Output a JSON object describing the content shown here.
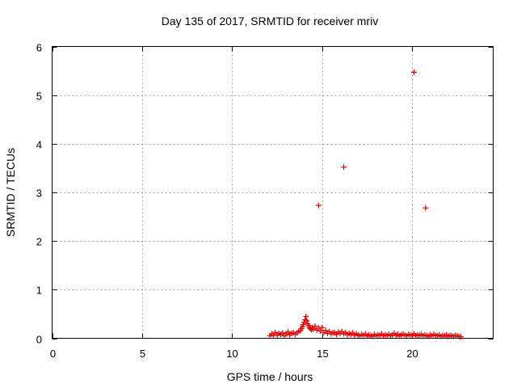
{
  "chart_data": {
    "type": "scatter",
    "title": "Day 135 of 2017, SRMTID for receiver mriv",
    "xlabel": "GPS time / hours",
    "ylabel": "SRMTID / TECUs",
    "xlim": [
      0,
      24.5
    ],
    "ylim": [
      0,
      6
    ],
    "xticks": [
      0,
      5,
      10,
      15,
      20
    ],
    "yticks": [
      0,
      1,
      2,
      3,
      4,
      5,
      6
    ],
    "grid": true,
    "marker": "+",
    "color": "#e00000",
    "series": [
      {
        "x": [
          12.1,
          12.2,
          12.3,
          12.4,
          12.5,
          12.6,
          12.7,
          12.8,
          12.9,
          13.0,
          13.1,
          13.2,
          13.3,
          13.4,
          13.5,
          13.6,
          13.7,
          13.8,
          13.85,
          13.9,
          13.95,
          14.0,
          14.05,
          14.1,
          14.15,
          14.2,
          14.25,
          14.3,
          14.35,
          14.4,
          14.45,
          14.5,
          14.6,
          14.7,
          14.8,
          14.9,
          15.0,
          15.1,
          15.2,
          15.3,
          15.4,
          15.5,
          15.6,
          15.7,
          15.8,
          15.9,
          16.0,
          16.1,
          16.2,
          16.3,
          16.4,
          16.5,
          16.6,
          16.7,
          16.8,
          16.9,
          17.0,
          17.1,
          17.2,
          17.3,
          17.4,
          17.5,
          17.6,
          17.7,
          17.8,
          17.9,
          18.0,
          18.1,
          18.2,
          18.3,
          18.4,
          18.5,
          18.6,
          18.7,
          18.8,
          18.9,
          19.0,
          19.1,
          19.2,
          19.3,
          19.4,
          19.5,
          19.6,
          19.7,
          19.8,
          19.9,
          20.0,
          20.1,
          20.2,
          20.3,
          20.4,
          20.5,
          20.6,
          20.7,
          20.8,
          20.9,
          21.0,
          21.1,
          21.2,
          21.3,
          21.4,
          21.5,
          21.6,
          21.7,
          21.8,
          21.9,
          22.0,
          22.1,
          22.2,
          22.3,
          22.4,
          22.5,
          22.6,
          22.7,
          14.8,
          16.2,
          20.1,
          20.75
        ],
        "y": [
          0.05,
          0.09,
          0.07,
          0.12,
          0.06,
          0.1,
          0.08,
          0.11,
          0.05,
          0.09,
          0.13,
          0.07,
          0.1,
          0.12,
          0.08,
          0.11,
          0.14,
          0.16,
          0.2,
          0.24,
          0.28,
          0.33,
          0.38,
          0.45,
          0.36,
          0.3,
          0.26,
          0.22,
          0.2,
          0.18,
          0.22,
          0.19,
          0.25,
          0.17,
          0.21,
          0.15,
          0.22,
          0.12,
          0.16,
          0.1,
          0.14,
          0.09,
          0.12,
          0.11,
          0.08,
          0.13,
          0.1,
          0.14,
          0.09,
          0.12,
          0.07,
          0.1,
          0.08,
          0.11,
          0.06,
          0.09,
          0.07,
          0.05,
          0.08,
          0.06,
          0.09,
          0.05,
          0.07,
          0.06,
          0.04,
          0.08,
          0.05,
          0.07,
          0.06,
          0.09,
          0.05,
          0.07,
          0.06,
          0.08,
          0.05,
          0.07,
          0.1,
          0.06,
          0.08,
          0.05,
          0.07,
          0.09,
          0.06,
          0.05,
          0.08,
          0.07,
          0.06,
          0.09,
          0.05,
          0.07,
          0.06,
          0.08,
          0.05,
          0.07,
          0.06,
          0.04,
          0.07,
          0.05,
          0.08,
          0.06,
          0.05,
          0.07,
          0.04,
          0.06,
          0.05,
          0.07,
          0.04,
          0.06,
          0.05,
          0.04,
          0.06,
          0.05,
          0.04,
          0.03,
          2.73,
          3.52,
          5.47,
          2.68
        ]
      }
    ]
  }
}
